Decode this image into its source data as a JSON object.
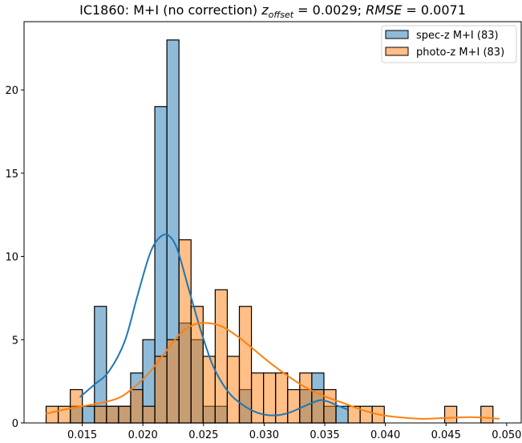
{
  "chart_data": {
    "type": "bar",
    "title": {
      "prefix": "IC1860: M+I (no correction) ",
      "z_symbol": "z",
      "z_subscript": "offset",
      "z_value": " = 0.0029; ",
      "rmse_symbol": "RMSE",
      "rmse_value": " = 0.0071"
    },
    "xlabel": "",
    "ylabel": "",
    "xlim": [
      0.0102,
      0.0512
    ],
    "ylim": [
      0,
      24.1
    ],
    "grid": false,
    "legend_position": "top-right",
    "x_ticks": [
      0.015,
      0.02,
      0.025,
      0.03,
      0.035,
      0.04,
      0.045,
      0.05
    ],
    "x_tick_labels": [
      "0.015",
      "0.020",
      "0.025",
      "0.030",
      "0.035",
      "0.040",
      "0.045",
      "0.050"
    ],
    "y_ticks": [
      0,
      5,
      10,
      15,
      20
    ],
    "y_tick_labels": [
      "0",
      "5",
      "10",
      "15",
      "20"
    ],
    "bin_start": 0.01202,
    "bin_width": 0.000996,
    "series": [
      {
        "name": "spec-z M+I (83)",
        "color": "#1f77b4",
        "fill": "#86b3d8",
        "counts": [
          0,
          0,
          1,
          1,
          7,
          1,
          1,
          3,
          5,
          19,
          23,
          6,
          5,
          1,
          1,
          0,
          2,
          0,
          0,
          0,
          0,
          2,
          3,
          1,
          1,
          0,
          0,
          0,
          0,
          0,
          0,
          0,
          0,
          0,
          0,
          0,
          0
        ],
        "kde": [
          [
            0.0148,
            1.55
          ],
          [
            0.016,
            2.3
          ],
          [
            0.0172,
            3.1
          ],
          [
            0.0185,
            4.9
          ],
          [
            0.0195,
            7.5
          ],
          [
            0.0205,
            10.0
          ],
          [
            0.0212,
            11.0
          ],
          [
            0.022,
            11.3
          ],
          [
            0.0228,
            10.5
          ],
          [
            0.0238,
            8.0
          ],
          [
            0.0248,
            5.5
          ],
          [
            0.0258,
            3.4
          ],
          [
            0.027,
            1.9
          ],
          [
            0.0282,
            1.1
          ],
          [
            0.0295,
            0.6
          ],
          [
            0.0308,
            0.45
          ],
          [
            0.032,
            0.6
          ],
          [
            0.0333,
            1.0
          ],
          [
            0.0345,
            1.35
          ],
          [
            0.0352,
            1.3
          ],
          [
            0.0362,
            1.0
          ],
          [
            0.0369,
            0.8
          ]
        ]
      },
      {
        "name": "photo-z M+I (83)",
        "color": "#ff7f0e",
        "fill": "#ffb27a",
        "counts": [
          1,
          1,
          2,
          0,
          1,
          1,
          1,
          2,
          1,
          4,
          5,
          11,
          7,
          4,
          8,
          4,
          7,
          3,
          3,
          3,
          2,
          3,
          2,
          2,
          0,
          1,
          1,
          1,
          0,
          0,
          0,
          0,
          0,
          1,
          0,
          0,
          1
        ],
        "kde": [
          [
            0.012,
            0.55
          ],
          [
            0.0135,
            0.8
          ],
          [
            0.015,
            1.0
          ],
          [
            0.0165,
            1.2
          ],
          [
            0.018,
            1.5
          ],
          [
            0.0192,
            2.1
          ],
          [
            0.0205,
            3.0
          ],
          [
            0.0218,
            4.2
          ],
          [
            0.023,
            5.3
          ],
          [
            0.0242,
            5.9
          ],
          [
            0.0253,
            6.0
          ],
          [
            0.0265,
            5.8
          ],
          [
            0.0278,
            5.2
          ],
          [
            0.029,
            4.5
          ],
          [
            0.0305,
            3.6
          ],
          [
            0.032,
            2.8
          ],
          [
            0.0335,
            2.1
          ],
          [
            0.035,
            1.6
          ],
          [
            0.0365,
            1.2
          ],
          [
            0.038,
            0.8
          ],
          [
            0.0395,
            0.5
          ],
          [
            0.041,
            0.35
          ],
          [
            0.043,
            0.25
          ],
          [
            0.045,
            0.3
          ],
          [
            0.047,
            0.35
          ],
          [
            0.0485,
            0.3
          ],
          [
            0.0494,
            0.25
          ]
        ]
      }
    ]
  }
}
